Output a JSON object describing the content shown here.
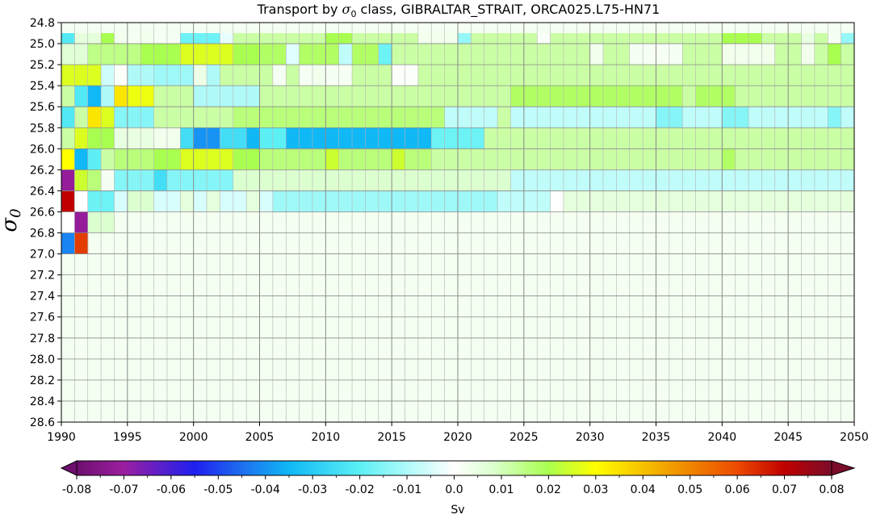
{
  "chart_data": {
    "type": "heatmap",
    "title_prefix": "Transport by ",
    "title_symbol": "σ",
    "title_subscript": "0",
    "title_suffix": " class, GIBRALTAR_STRAIT, ORCA025.L75-HN71",
    "ylabel_symbol": "σ",
    "ylabel_subscript": "0",
    "xlim": [
      1990,
      2050
    ],
    "x_ticks": [
      "1990",
      "1995",
      "2000",
      "2005",
      "2010",
      "2015",
      "2020",
      "2025",
      "2030",
      "2035",
      "2040",
      "2045",
      "2050"
    ],
    "ylim": [
      24.8,
      28.6
    ],
    "y_inverted": true,
    "y_ticks": [
      "24.8",
      "25.0",
      "25.2",
      "25.4",
      "25.6",
      "25.8",
      "26.0",
      "26.2",
      "26.4",
      "26.6",
      "26.8",
      "27.0",
      "27.2",
      "27.4",
      "27.6",
      "27.8",
      "28.0",
      "28.2",
      "28.4",
      "28.6"
    ],
    "grid": true,
    "colormap": "rainbow-diverging",
    "colorbar": {
      "orientation": "horizontal",
      "extend": "both",
      "vmin": -0.08,
      "vmax": 0.08,
      "ticks": [
        "-0.08",
        "-0.07",
        "-0.06",
        "-0.05",
        "-0.04",
        "-0.03",
        "-0.02",
        "-0.01",
        "0.0",
        "0.01",
        "0.02",
        "0.03",
        "0.04",
        "0.05",
        "0.06",
        "0.07",
        "0.08"
      ],
      "label": "Sv",
      "stops": [
        [
          -0.085,
          "#6e0f6e"
        ],
        [
          -0.07,
          "#9b1fa0"
        ],
        [
          -0.055,
          "#1f1ff0"
        ],
        [
          -0.045,
          "#1e6ef0"
        ],
        [
          -0.035,
          "#10b8f5"
        ],
        [
          -0.02,
          "#5cf0f5"
        ],
        [
          -0.008,
          "#bffcfa"
        ],
        [
          0.0,
          "#ffffff"
        ],
        [
          0.008,
          "#dcffd0"
        ],
        [
          0.02,
          "#a9ff4f"
        ],
        [
          0.03,
          "#ffff00"
        ],
        [
          0.045,
          "#f2a300"
        ],
        [
          0.06,
          "#ec4a00"
        ],
        [
          0.07,
          "#c00000"
        ],
        [
          0.085,
          "#7a0c2a"
        ]
      ]
    },
    "rows_sigma_top": [
      24.9,
      25.0,
      25.2,
      25.4,
      25.6,
      25.8,
      26.0,
      26.2,
      26.4,
      26.6,
      26.8
    ],
    "rows_sigma_bottom": [
      25.0,
      25.2,
      25.4,
      25.6,
      25.8,
      26.0,
      26.2,
      26.4,
      26.6,
      26.8,
      27.0
    ],
    "values_start_year": 1990,
    "values_end_year": 2049,
    "values": [
      [
        -0.022,
        0.006,
        0.006,
        0.02,
        0.003,
        0.002,
        0.003,
        0.002,
        0.002,
        -0.018,
        -0.018,
        -0.018,
        -0.003,
        0.012,
        0.012,
        0.012,
        0.012,
        0.012,
        0.012,
        0.012,
        0.02,
        0.02,
        0.012,
        0.012,
        0.012,
        0.012,
        0.012,
        0.003,
        0.003,
        0.003,
        -0.013,
        0.012,
        0.012,
        0.012,
        0.012,
        0.012,
        0.001,
        0.012,
        0.012,
        0.012,
        0.012,
        0.012,
        0.012,
        0.012,
        0.012,
        0.012,
        0.012,
        0.012,
        0.012,
        0.012,
        0.02,
        0.02,
        0.02,
        0.012,
        0.012,
        0.012,
        0.005,
        0.012,
        0.002,
        -0.013
      ],
      [
        0.007,
        0.007,
        0.015,
        0.015,
        0.015,
        0.015,
        0.02,
        0.02,
        0.02,
        0.026,
        0.026,
        0.026,
        0.026,
        0.02,
        0.02,
        0.018,
        0.018,
        -0.004,
        0.018,
        0.018,
        0.018,
        -0.008,
        0.018,
        0.018,
        -0.018,
        0.012,
        0.012,
        0.012,
        0.012,
        0.012,
        0.012,
        0.012,
        0.012,
        0.012,
        0.012,
        0.012,
        0.012,
        0.012,
        0.012,
        0.012,
        0.003,
        0.012,
        0.012,
        0.002,
        0.002,
        0.002,
        0.002,
        0.012,
        0.012,
        0.012,
        0.003,
        0.003,
        0.003,
        0.003,
        0.012,
        0.012,
        0.003,
        0.012,
        0.02,
        0.012
      ],
      [
        0.026,
        0.026,
        0.026,
        -0.006,
        0.001,
        -0.01,
        -0.01,
        -0.012,
        -0.012,
        -0.012,
        0.004,
        -0.01,
        0.012,
        0.012,
        0.012,
        0.012,
        0.002,
        0.012,
        0.002,
        0.003,
        0.002,
        0.002,
        0.012,
        0.012,
        0.012,
        0.001,
        0.001,
        0.012,
        0.012,
        0.012,
        0.012,
        0.012,
        0.012,
        0.012,
        0.012,
        0.012,
        0.012,
        0.012,
        0.012,
        0.012,
        0.012,
        0.012,
        0.012,
        0.012,
        0.012,
        0.012,
        0.012,
        0.012,
        0.012,
        0.012,
        0.012,
        0.012,
        0.012,
        0.012,
        0.012,
        0.012,
        0.012,
        0.012,
        0.012,
        0.012
      ],
      [
        0.012,
        -0.022,
        -0.035,
        -0.01,
        0.034,
        0.028,
        0.028,
        0.012,
        0.012,
        0.012,
        -0.01,
        -0.01,
        -0.01,
        -0.01,
        -0.01,
        0.012,
        0.012,
        0.012,
        0.012,
        0.012,
        0.012,
        0.012,
        0.012,
        0.012,
        0.012,
        0.012,
        0.012,
        0.012,
        0.012,
        0.012,
        0.012,
        0.012,
        0.012,
        0.012,
        0.018,
        0.018,
        0.018,
        0.018,
        0.018,
        0.018,
        0.018,
        0.018,
        0.018,
        0.018,
        0.018,
        0.018,
        0.018,
        0.012,
        0.018,
        0.018,
        0.018,
        0.012,
        0.012,
        0.012,
        0.012,
        0.012,
        0.012,
        0.012,
        0.012,
        0.012
      ],
      [
        -0.022,
        0.012,
        0.034,
        0.026,
        -0.015,
        -0.015,
        -0.015,
        0.012,
        0.012,
        0.012,
        0.012,
        0.012,
        0.012,
        0.016,
        0.016,
        0.016,
        0.016,
        0.016,
        0.016,
        0.016,
        0.016,
        0.016,
        0.016,
        0.016,
        0.016,
        0.016,
        0.016,
        0.016,
        0.016,
        -0.008,
        -0.008,
        -0.008,
        -0.008,
        0.012,
        -0.008,
        -0.008,
        -0.008,
        -0.008,
        -0.008,
        -0.008,
        -0.008,
        -0.008,
        -0.008,
        -0.008,
        -0.008,
        -0.015,
        -0.015,
        -0.008,
        -0.008,
        -0.008,
        -0.015,
        -0.015,
        -0.008,
        -0.008,
        -0.008,
        -0.008,
        -0.008,
        -0.008,
        -0.015,
        -0.008
      ],
      [
        0.012,
        0.026,
        0.02,
        0.02,
        0.005,
        0.005,
        0.005,
        0.003,
        0.003,
        -0.025,
        -0.04,
        -0.04,
        -0.025,
        -0.025,
        -0.035,
        -0.02,
        -0.02,
        -0.035,
        -0.035,
        -0.035,
        -0.035,
        -0.035,
        -0.035,
        -0.035,
        -0.035,
        -0.035,
        -0.035,
        -0.035,
        -0.018,
        -0.018,
        -0.018,
        -0.018,
        0.012,
        0.012,
        0.012,
        0.012,
        0.012,
        0.012,
        0.012,
        0.012,
        0.012,
        0.012,
        0.012,
        0.012,
        0.012,
        0.012,
        0.012,
        0.012,
        0.012,
        0.012,
        0.012,
        0.012,
        0.012,
        0.012,
        0.012,
        0.012,
        0.012,
        0.012,
        0.012,
        0.012
      ],
      [
        0.03,
        -0.035,
        -0.02,
        0.012,
        0.016,
        0.016,
        0.016,
        0.02,
        0.02,
        0.026,
        0.026,
        0.026,
        0.026,
        0.02,
        0.02,
        0.016,
        0.016,
        0.016,
        0.016,
        0.016,
        0.024,
        0.016,
        0.016,
        0.016,
        0.016,
        0.024,
        0.016,
        0.016,
        0.012,
        0.012,
        0.012,
        0.012,
        0.012,
        0.012,
        0.012,
        0.012,
        0.012,
        0.012,
        0.012,
        0.012,
        0.012,
        0.012,
        0.012,
        0.012,
        0.012,
        0.012,
        0.012,
        0.012,
        0.012,
        0.012,
        0.018,
        0.012,
        0.012,
        0.012,
        0.012,
        0.012,
        0.012,
        0.012,
        0.012,
        0.012
      ],
      [
        -0.072,
        0.024,
        0.016,
        0.002,
        -0.015,
        -0.015,
        -0.015,
        -0.025,
        -0.015,
        -0.015,
        -0.015,
        -0.015,
        -0.015,
        0.008,
        0.008,
        0.008,
        0.008,
        0.008,
        0.008,
        0.008,
        0.008,
        0.008,
        0.008,
        0.008,
        0.008,
        0.008,
        0.008,
        0.008,
        0.008,
        0.008,
        0.008,
        0.008,
        0.008,
        0.008,
        -0.008,
        -0.008,
        -0.008,
        -0.008,
        -0.008,
        -0.008,
        -0.008,
        -0.008,
        -0.008,
        -0.008,
        -0.008,
        -0.008,
        -0.008,
        -0.008,
        -0.008,
        -0.008,
        -0.008,
        -0.008,
        -0.008,
        -0.008,
        -0.008,
        -0.008,
        -0.008,
        -0.008,
        -0.008,
        -0.008
      ],
      [
        0.07,
        0.0,
        -0.018,
        -0.018,
        -0.005,
        0.008,
        0.008,
        -0.005,
        -0.005,
        0.006,
        -0.005,
        0.006,
        -0.005,
        -0.005,
        0.006,
        -0.005,
        -0.012,
        -0.012,
        -0.012,
        -0.012,
        -0.012,
        -0.012,
        -0.012,
        -0.012,
        -0.012,
        -0.012,
        -0.012,
        -0.012,
        -0.012,
        -0.012,
        -0.012,
        -0.012,
        -0.012,
        -0.008,
        -0.008,
        -0.008,
        -0.008,
        0.0,
        0.006,
        0.006,
        0.006,
        0.006,
        0.006,
        0.006,
        0.006,
        0.006,
        0.006,
        0.006,
        0.006,
        0.006,
        0.006,
        0.006,
        0.006,
        0.006,
        0.006,
        0.006,
        0.006,
        0.006,
        0.006,
        0.006
      ],
      [
        0.0,
        -0.072,
        0.008,
        0.008,
        null,
        null,
        null,
        null,
        null,
        null,
        null,
        null,
        null,
        null,
        null,
        null,
        null,
        null,
        null,
        null,
        null,
        null,
        null,
        null,
        null,
        null,
        null,
        null,
        null,
        null,
        null,
        null,
        null,
        null,
        null,
        null,
        null,
        null,
        null,
        null,
        null,
        null,
        null,
        null,
        null,
        null,
        null,
        null,
        null,
        null,
        null,
        null,
        null,
        null,
        null,
        null,
        null,
        null,
        null,
        null
      ],
      [
        -0.042,
        0.062,
        null,
        null,
        null,
        null,
        null,
        null,
        null,
        null,
        null,
        null,
        null,
        null,
        null,
        null,
        null,
        null,
        null,
        null,
        null,
        null,
        null,
        null,
        null,
        null,
        null,
        null,
        null,
        null,
        null,
        null,
        null,
        null,
        null,
        null,
        null,
        null,
        null,
        null,
        null,
        null,
        null,
        null,
        null,
        null,
        null,
        null,
        null,
        null,
        null,
        null,
        null,
        null,
        null,
        null,
        null,
        null,
        null,
        null
      ]
    ]
  }
}
